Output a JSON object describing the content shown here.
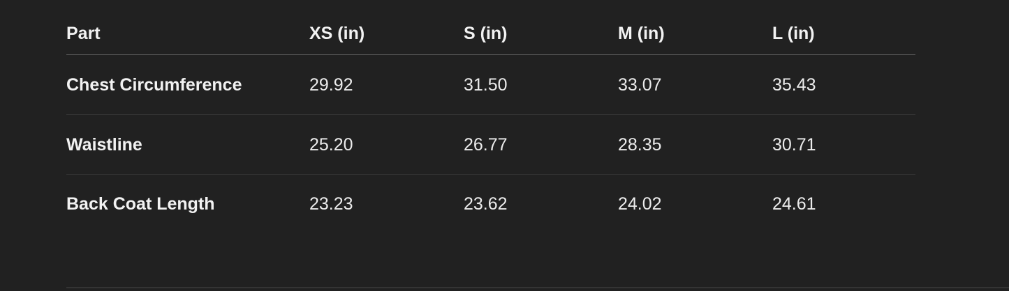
{
  "table": {
    "header": [
      "Part",
      "XS (in)",
      "S (in)",
      "M (in)",
      "L (in)"
    ],
    "rows": [
      [
        "Chest Circumference",
        "29.92",
        "31.50",
        "33.07",
        "35.43"
      ],
      [
        "Waistline",
        "25.20",
        "26.77",
        "28.35",
        "30.71"
      ],
      [
        "Back Coat Length",
        "23.23",
        "23.62",
        "24.02",
        "24.61"
      ]
    ]
  }
}
